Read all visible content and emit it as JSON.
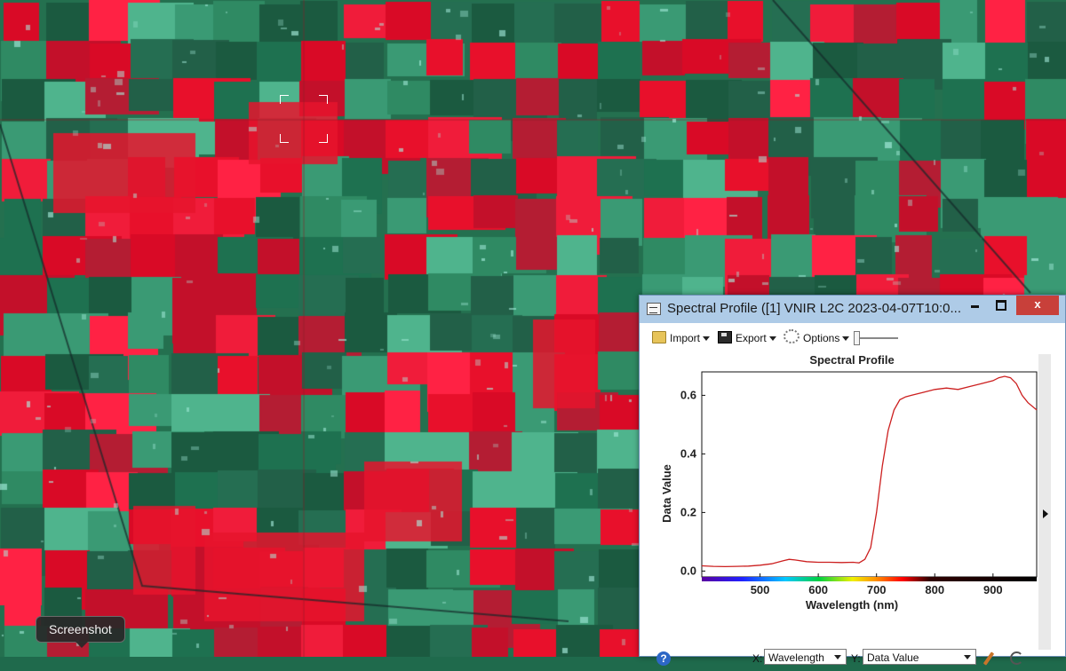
{
  "window": {
    "title": "Spectral Profile ([1] VNIR L2C 2023-04-07T10:0...",
    "minimize_icon": "minimize-icon",
    "maximize_icon": "maximize-icon",
    "close_label": "x"
  },
  "toolbar": {
    "import_label": "Import",
    "export_label": "Export",
    "options_label": "Options"
  },
  "axes_controls": {
    "x_label": "X:",
    "x_value": "Wavelength",
    "y_label": "Y:",
    "y_value": "Data Value"
  },
  "tooltip": {
    "text": "Screenshot"
  },
  "colors": {
    "accent_titlebar": "#aecbe7",
    "close_button": "#c8403a",
    "series_line": "#cc1f1f"
  },
  "chart_data": {
    "type": "line",
    "title": "Spectral Profile",
    "xlabel": "Wavelength (nm)",
    "ylabel": "Data Value",
    "xlim": [
      400,
      975
    ],
    "ylim": [
      -0.02,
      0.68
    ],
    "x_ticks": [
      500,
      600,
      700,
      800,
      900
    ],
    "y_ticks": [
      0.0,
      0.2,
      0.4,
      0.6
    ],
    "y_tick_labels": [
      "0.0",
      "0.2",
      "0.4",
      "0.6"
    ],
    "grid": false,
    "legend": "none",
    "color_strip_below_axis": true,
    "series": [
      {
        "x": [
          400,
          420,
          440,
          460,
          480,
          500,
          520,
          540,
          550,
          560,
          580,
          600,
          620,
          640,
          660,
          670,
          680,
          690,
          700,
          710,
          720,
          730,
          740,
          750,
          760,
          780,
          800,
          820,
          840,
          860,
          880,
          900,
          910,
          920,
          930,
          940,
          950,
          960,
          975
        ],
        "y": [
          0.018,
          0.016,
          0.015,
          0.016,
          0.017,
          0.02,
          0.025,
          0.035,
          0.04,
          0.038,
          0.032,
          0.03,
          0.03,
          0.029,
          0.03,
          0.028,
          0.04,
          0.08,
          0.2,
          0.36,
          0.48,
          0.55,
          0.585,
          0.595,
          0.6,
          0.61,
          0.62,
          0.625,
          0.62,
          0.63,
          0.64,
          0.65,
          0.66,
          0.665,
          0.66,
          0.64,
          0.6,
          0.575,
          0.55
        ]
      }
    ]
  }
}
